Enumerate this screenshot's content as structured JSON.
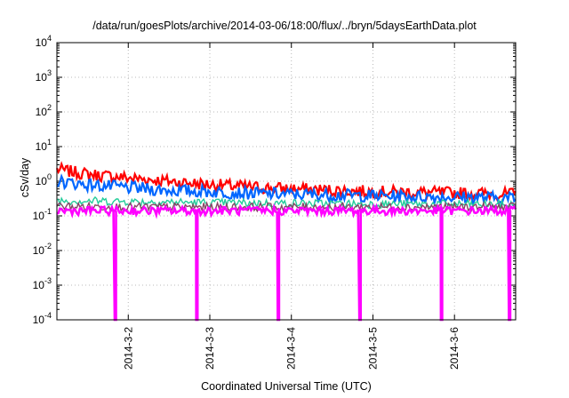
{
  "title": "/data/run/goesPlots/archive/2014-03-06/18:00/flux/../bryn/5daysEarthData.plot",
  "colors": {
    "background": "#ffffff",
    "grid": "#b8b8b8",
    "axis": "#000000"
  },
  "chart_data": {
    "type": "line",
    "title": "/data/run/goesPlots/archive/2014-03-06/18:00/flux/../bryn/5daysEarthData.plot",
    "xlabel": "Coordinated Universal Time (UTC)",
    "ylabel": "cSv/day",
    "yscale": "log",
    "ylim": [
      0.0001,
      10000
    ],
    "xlim": [
      "2014-03-01T03:00",
      "2014-03-06T18:00"
    ],
    "y_ticks": [
      {
        "value": 0.0001,
        "base": "10",
        "exp": "-4"
      },
      {
        "value": 0.001,
        "base": "10",
        "exp": "-3"
      },
      {
        "value": 0.01,
        "base": "10",
        "exp": "-2"
      },
      {
        "value": 0.1,
        "base": "10",
        "exp": "-1"
      },
      {
        "value": 1,
        "base": "10",
        "exp": "0"
      },
      {
        "value": 10,
        "base": "10",
        "exp": "1"
      },
      {
        "value": 100,
        "base": "10",
        "exp": "2"
      },
      {
        "value": 1000,
        "base": "10",
        "exp": "3"
      },
      {
        "value": 10000,
        "base": "10",
        "exp": "4"
      }
    ],
    "x_ticks": [
      {
        "value": "2014-03-02T00:00",
        "label": "2014-3-2"
      },
      {
        "value": "2014-03-03T00:00",
        "label": "2014-3-3"
      },
      {
        "value": "2014-03-04T00:00",
        "label": "2014-3-4"
      },
      {
        "value": "2014-03-05T00:00",
        "label": "2014-3-5"
      },
      {
        "value": "2014-03-06T00:00",
        "label": "2014-3-6"
      }
    ],
    "grid": true,
    "legend": "none",
    "series": [
      {
        "color": "#ff0000",
        "x": [
          "2014-03-01T03:00",
          "2014-03-01T12:00",
          "2014-03-02T00:00",
          "2014-03-02T12:00",
          "2014-03-03T00:00",
          "2014-03-03T12:00",
          "2014-03-04T00:00",
          "2014-03-04T12:00",
          "2014-03-05T00:00",
          "2014-03-05T12:00",
          "2014-03-06T00:00",
          "2014-03-06T18:00"
        ],
        "values": [
          2.2,
          1.6,
          1.25,
          1.0,
          0.8,
          0.68,
          0.6,
          0.55,
          0.5,
          0.48,
          0.46,
          0.42
        ]
      },
      {
        "color": "#0066ff",
        "x": [
          "2014-03-01T03:00",
          "2014-03-01T12:00",
          "2014-03-02T00:00",
          "2014-03-02T12:00",
          "2014-03-03T00:00",
          "2014-03-03T12:00",
          "2014-03-04T00:00",
          "2014-03-04T12:00",
          "2014-03-05T00:00",
          "2014-03-05T12:00",
          "2014-03-06T00:00",
          "2014-03-06T18:00"
        ],
        "values": [
          1.0,
          0.8,
          0.65,
          0.55,
          0.5,
          0.45,
          0.42,
          0.4,
          0.38,
          0.36,
          0.35,
          0.33
        ]
      },
      {
        "color": "#22cc99",
        "x": [
          "2014-03-01T03:00",
          "2014-03-02T00:00",
          "2014-03-03T00:00",
          "2014-03-04T00:00",
          "2014-03-05T00:00",
          "2014-03-06T00:00",
          "2014-03-06T18:00"
        ],
        "values": [
          0.28,
          0.26,
          0.24,
          0.23,
          0.22,
          0.22,
          0.21
        ]
      },
      {
        "color": "#884466",
        "x": [
          "2014-03-01T03:00",
          "2014-03-02T00:00",
          "2014-03-03T00:00",
          "2014-03-04T00:00",
          "2014-03-05T00:00",
          "2014-03-06T00:00",
          "2014-03-06T18:00"
        ],
        "values": [
          0.19,
          0.18,
          0.18,
          0.18,
          0.18,
          0.18,
          0.18
        ]
      },
      {
        "color": "#ff00ff",
        "x": [
          "2014-03-01T03:00",
          "2014-03-02T00:00",
          "2014-03-03T00:00",
          "2014-03-04T00:00",
          "2014-03-05T00:00",
          "2014-03-06T00:00",
          "2014-03-06T18:00"
        ],
        "values": [
          0.14,
          0.14,
          0.14,
          0.14,
          0.14,
          0.14,
          0.14
        ],
        "dropouts": [
          {
            "x": "2014-03-01T20:00",
            "value": 0.0001
          },
          {
            "x": "2014-03-02T20:00",
            "value": 0.0001
          },
          {
            "x": "2014-03-03T20:00",
            "value": 0.0001
          },
          {
            "x": "2014-03-04T20:00",
            "value": 0.0001
          },
          {
            "x": "2014-03-05T20:00",
            "value": 0.0001
          },
          {
            "x": "2014-03-06T16:00",
            "value": 0.0001
          }
        ]
      }
    ]
  }
}
